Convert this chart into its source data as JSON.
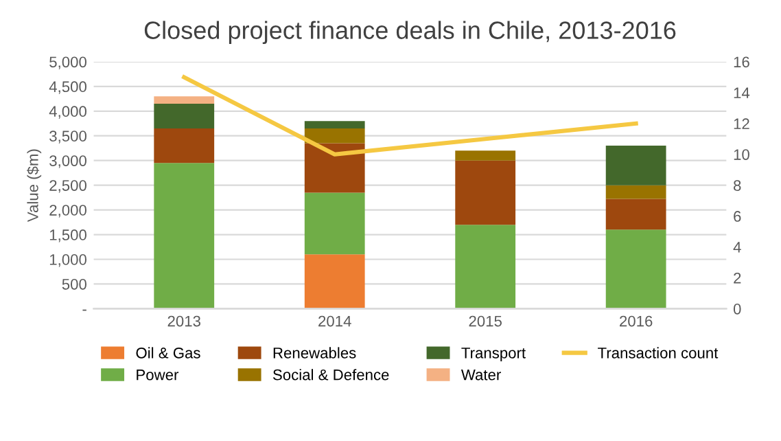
{
  "chart_data": {
    "type": "bar",
    "title": "Closed project finance deals in Chile, 2013-2016",
    "ylabel": "Value ($m)",
    "categories": [
      "2013",
      "2014",
      "2015",
      "2016"
    ],
    "stacked": true,
    "series": [
      {
        "name": "Oil & Gas",
        "color": "#ed7d31",
        "values": [
          0,
          1100,
          0,
          0
        ]
      },
      {
        "name": "Power",
        "color": "#70ad47",
        "values": [
          2950,
          1250,
          1700,
          1600
        ]
      },
      {
        "name": "Renewables",
        "color": "#9e480e",
        "values": [
          700,
          1000,
          1300,
          625
        ]
      },
      {
        "name": "Social & Defence",
        "color": "#997300",
        "values": [
          0,
          300,
          200,
          275
        ]
      },
      {
        "name": "Transport",
        "color": "#43682b",
        "values": [
          500,
          150,
          0,
          800
        ]
      },
      {
        "name": "Water",
        "color": "#f4b183",
        "values": [
          150,
          0,
          0,
          0
        ]
      },
      {
        "name": "Transaction count",
        "type": "line",
        "axis": "y2",
        "color": "#f5c842",
        "values": [
          15,
          10,
          11,
          12
        ]
      }
    ],
    "ylim": [
      0,
      5000
    ],
    "yticks": [
      {
        "value": 0,
        "label": "-"
      },
      500,
      {
        "value": 1000,
        "label": "1,000"
      },
      {
        "value": 1500,
        "label": "1,500"
      },
      {
        "value": 2000,
        "label": "2,000"
      },
      {
        "value": 2500,
        "label": "2,500"
      },
      {
        "value": 3000,
        "label": "3,000"
      },
      {
        "value": 3500,
        "label": "3,500"
      },
      {
        "value": 4000,
        "label": "4,000"
      },
      {
        "value": 4500,
        "label": "4,500"
      },
      {
        "value": 5000,
        "label": "5,000"
      }
    ],
    "y2lim": [
      0,
      16
    ],
    "y2ticks": [
      0,
      2,
      4,
      6,
      8,
      10,
      12,
      14,
      16
    ],
    "grid": "y",
    "legend": "bottom"
  }
}
